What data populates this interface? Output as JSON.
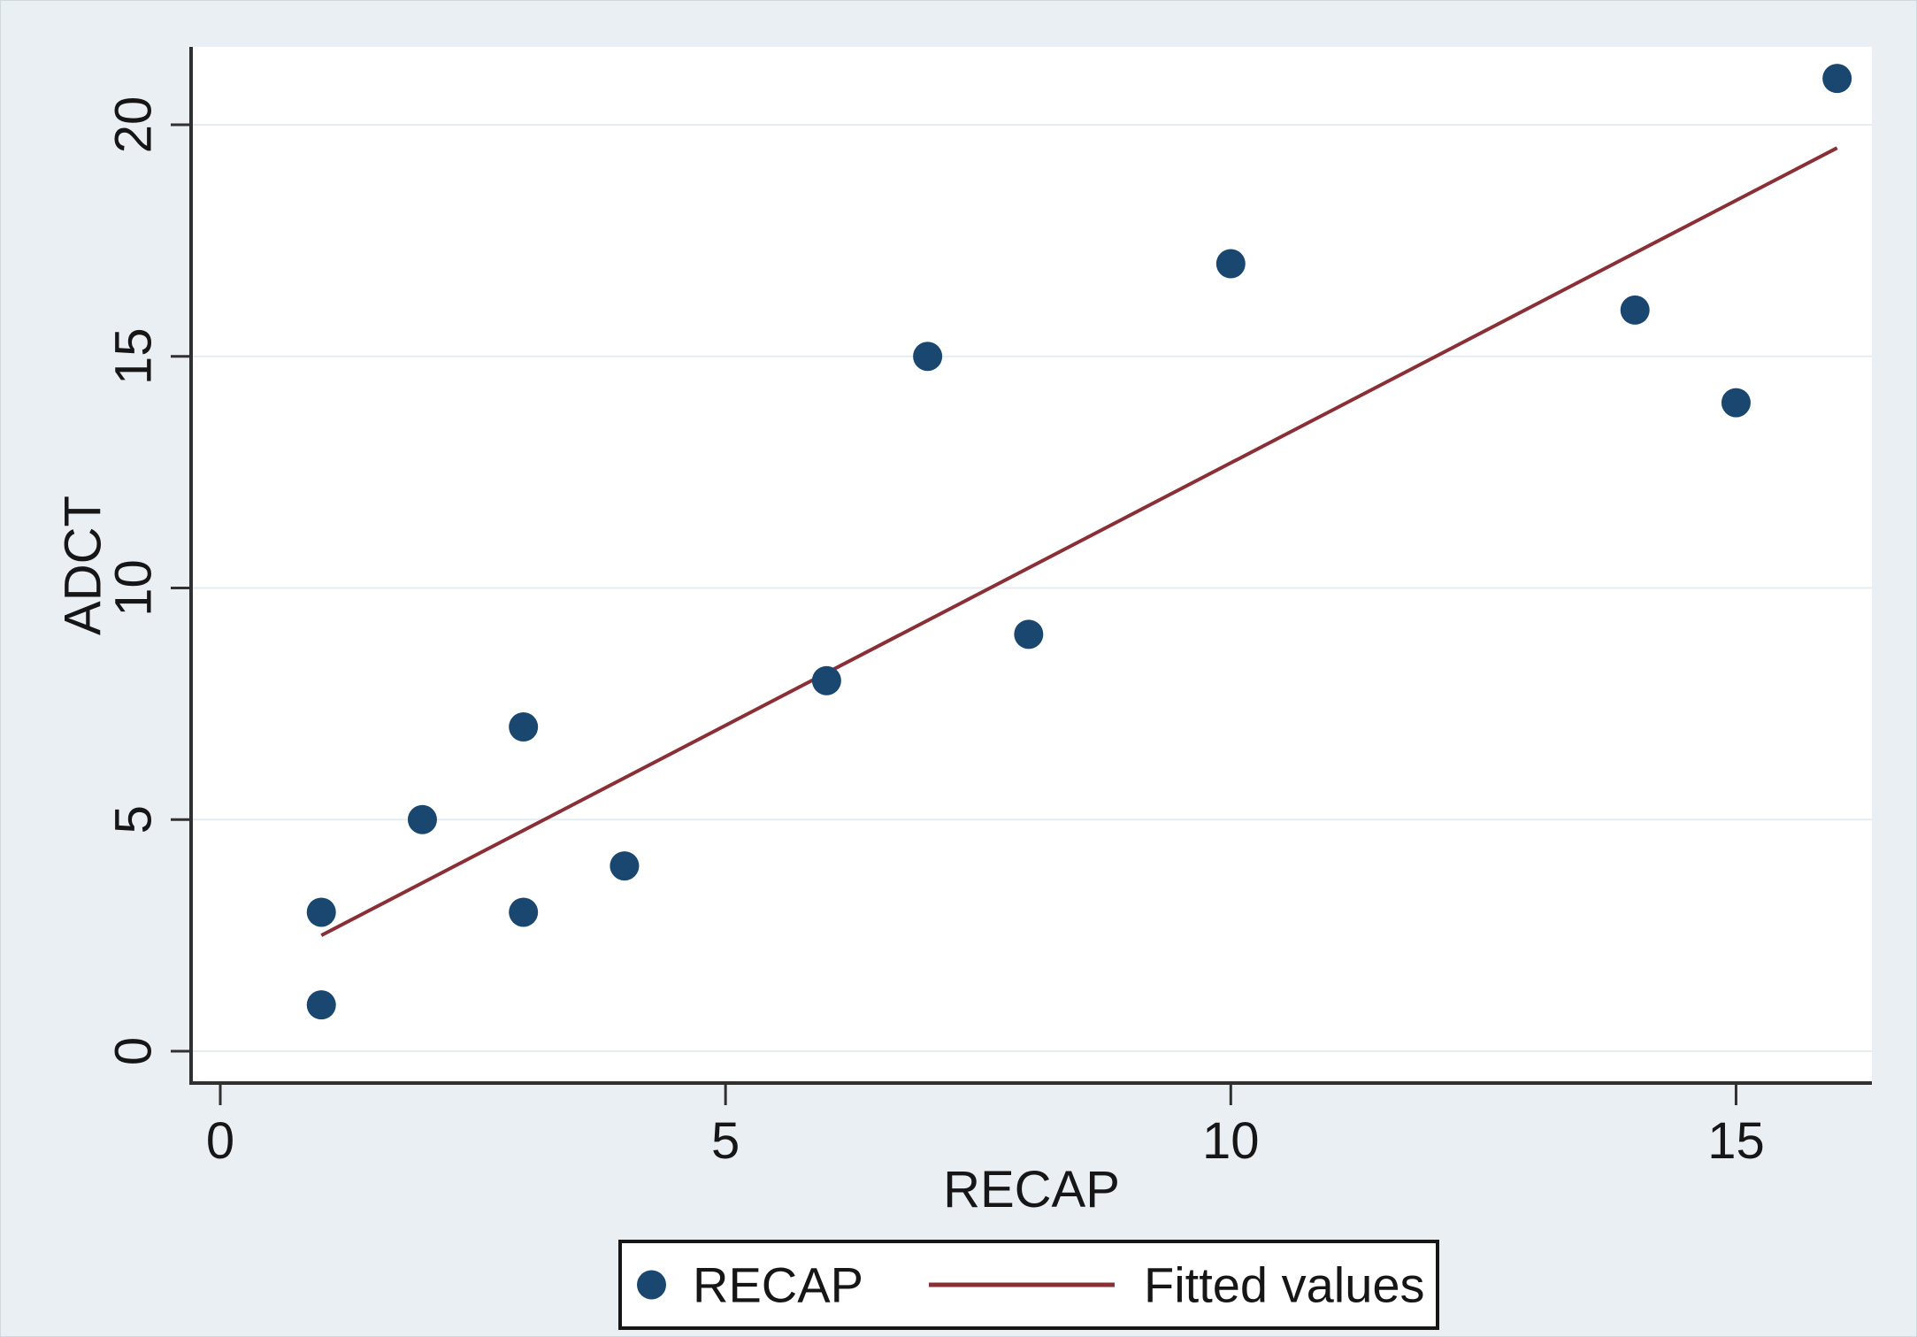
{
  "chart_data": {
    "type": "scatter",
    "title": "",
    "xlabel": "RECAP",
    "ylabel": "ADCT",
    "xticks": [
      0,
      5,
      10,
      15
    ],
    "yticks": [
      0,
      5,
      10,
      15,
      20
    ],
    "xlim": [
      -0.29,
      16.35
    ],
    "ylim": [
      -0.69,
      21.7
    ],
    "grid": "horizontal",
    "points": [
      {
        "x": 1,
        "y": 1
      },
      {
        "x": 1,
        "y": 3
      },
      {
        "x": 2,
        "y": 5
      },
      {
        "x": 3,
        "y": 3
      },
      {
        "x": 3,
        "y": 7
      },
      {
        "x": 4,
        "y": 4
      },
      {
        "x": 6,
        "y": 8
      },
      {
        "x": 7,
        "y": 15
      },
      {
        "x": 8,
        "y": 9
      },
      {
        "x": 10,
        "y": 17
      },
      {
        "x": 14,
        "y": 16
      },
      {
        "x": 15,
        "y": 14
      },
      {
        "x": 16,
        "y": 21
      }
    ],
    "fit_line": {
      "x1": 1,
      "y1": 2.5,
      "x2": 16,
      "y2": 19.5
    },
    "legend": {
      "position": "bottom-center",
      "entries": [
        {
          "label": "RECAP",
          "marker": "dot"
        },
        {
          "label": "Fitted values",
          "marker": "line"
        }
      ]
    },
    "colors": {
      "marker": "#1a476f",
      "line": "#8b2f36",
      "plot_bg": "#ffffff",
      "outer_bg": "#e9eff3",
      "grid": "#e6edf1",
      "axis": "#303030",
      "text": "#161616"
    }
  }
}
